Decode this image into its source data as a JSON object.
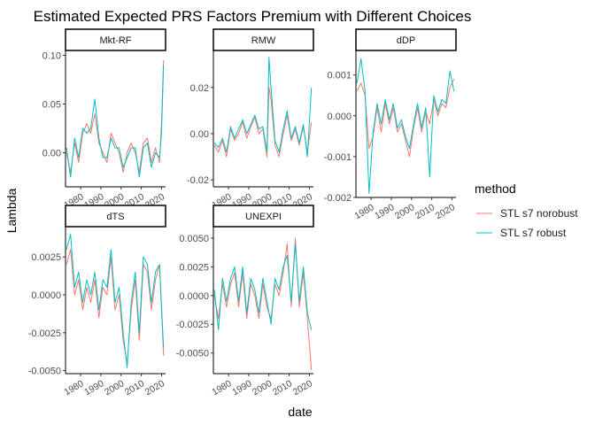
{
  "chart_data": {
    "type": "line",
    "title": "Estimated Expected PRS Factors Premium with Different Choices",
    "xlabel": "date",
    "ylabel": "Lambda",
    "grid": false,
    "legend": {
      "title": "method",
      "position": "right",
      "entries": [
        "STL s7 norobust",
        "STL s7 robust"
      ]
    },
    "series_colors": [
      "#F8766D",
      "#00BFC4"
    ],
    "x_ticks": [
      1980,
      1990,
      2000,
      2010,
      2020
    ],
    "x_tick_labels": [
      "1980",
      "1990",
      "2000",
      "2010",
      "2020"
    ],
    "xlim": [
      1972.5,
      2022
    ],
    "panels": [
      {
        "name": "Mkt-RF",
        "ylim": [
          -0.035,
          0.105
        ],
        "y_ticks": [
          0.0,
          0.05,
          0.1
        ],
        "y_tick_labels": [
          "0.00",
          "0.05",
          "0.10"
        ],
        "x": [
          1973,
          1975,
          1977,
          1979,
          1981,
          1983,
          1985,
          1987,
          1989,
          1991,
          1993,
          1995,
          1997,
          1999,
          2001,
          2003,
          2005,
          2007,
          2009,
          2011,
          2013,
          2015,
          2017,
          2019,
          2020,
          2021
        ],
        "series": [
          {
            "name": "STL s7 norobust",
            "values": [
              0.0,
              -0.02,
              0.01,
              -0.01,
              0.02,
              0.03,
              0.02,
              0.04,
              0.01,
              0.0,
              -0.01,
              0.02,
              0.01,
              0.0,
              -0.02,
              0.0,
              0.01,
              0.0,
              -0.02,
              0.01,
              0.015,
              -0.01,
              0.005,
              -0.01,
              0.03,
              0.095
            ]
          },
          {
            "name": "STL s7 robust",
            "values": [
              0.005,
              -0.025,
              0.015,
              -0.005,
              0.025,
              0.02,
              0.025,
              0.055,
              0.015,
              -0.005,
              -0.005,
              0.015,
              0.005,
              0.005,
              -0.015,
              -0.005,
              0.005,
              0.005,
              -0.025,
              0.005,
              0.01,
              -0.015,
              0.0,
              -0.005,
              0.02,
              0.09
            ]
          }
        ]
      },
      {
        "name": "RMW",
        "ylim": [
          -0.023,
          0.036
        ],
        "y_ticks": [
          -0.02,
          0.0,
          0.02
        ],
        "y_tick_labels": [
          "-0.02",
          "0.00",
          "0.02"
        ],
        "x": [
          1973,
          1975,
          1977,
          1979,
          1981,
          1983,
          1985,
          1987,
          1989,
          1991,
          1993,
          1995,
          1997,
          1999,
          2000,
          2001,
          2003,
          2005,
          2007,
          2009,
          2011,
          2013,
          2015,
          2017,
          2019,
          2021
        ],
        "series": [
          {
            "name": "STL s7 norobust",
            "values": [
              -0.005,
              -0.008,
              -0.003,
              -0.01,
              0.002,
              -0.003,
              0.0,
              0.005,
              -0.002,
              0.003,
              0.007,
              0.0,
              0.002,
              -0.01,
              0.02,
              0.015,
              -0.005,
              -0.01,
              0.0,
              0.008,
              -0.003,
              0.002,
              -0.005,
              0.003,
              -0.008,
              0.005
            ]
          },
          {
            "name": "STL s7 robust",
            "values": [
              -0.004,
              -0.006,
              -0.002,
              -0.008,
              0.003,
              -0.002,
              0.002,
              0.006,
              0.0,
              0.004,
              0.008,
              0.002,
              0.003,
              -0.008,
              0.033,
              0.02,
              -0.003,
              -0.008,
              0.002,
              0.01,
              -0.002,
              0.003,
              -0.004,
              0.004,
              -0.01,
              0.02
            ]
          }
        ]
      },
      {
        "name": "dDP",
        "ylim": [
          -0.002,
          0.0016
        ],
        "y_ticks": [
          -0.002,
          -0.001,
          0.0,
          0.001
        ],
        "y_tick_labels": [
          "-0.002",
          "-0.001",
          "0.000",
          "0.001"
        ],
        "x": [
          1973,
          1975,
          1977,
          1979,
          1981,
          1983,
          1985,
          1987,
          1989,
          1991,
          1993,
          1995,
          1997,
          1999,
          2001,
          2003,
          2005,
          2007,
          2009,
          2011,
          2013,
          2015,
          2017,
          2019,
          2021
        ],
        "series": [
          {
            "name": "STL s7 norobust",
            "values": [
              0.0006,
              0.0008,
              0.0005,
              -0.0008,
              -0.0005,
              0.0002,
              -0.0004,
              0.0003,
              -0.0002,
              0.0002,
              -0.0004,
              -0.0002,
              -0.0006,
              -0.001,
              -0.0003,
              0.0002,
              -0.0004,
              0.0001,
              -0.0002,
              0.0004,
              0.0,
              0.0003,
              0.0002,
              0.0007,
              0.0009
            ]
          },
          {
            "name": "STL s7 robust",
            "values": [
              0.0008,
              0.0014,
              0.0006,
              -0.0019,
              -0.0004,
              0.0003,
              -0.0002,
              0.0004,
              -0.0001,
              0.0003,
              -0.0003,
              -0.0001,
              -0.0005,
              -0.0008,
              -0.0002,
              0.0003,
              -0.0003,
              0.0002,
              -0.0015,
              0.0005,
              0.0001,
              0.0004,
              0.0003,
              0.0011,
              0.0006
            ]
          }
        ]
      },
      {
        "name": "dTS",
        "ylim": [
          -0.0052,
          0.0045
        ],
        "y_ticks": [
          -0.005,
          -0.0025,
          0.0,
          0.0025
        ],
        "y_tick_labels": [
          "-0.0050",
          "-0.0025",
          "0.0000",
          "0.0025"
        ],
        "x": [
          1973,
          1975,
          1977,
          1979,
          1981,
          1983,
          1985,
          1987,
          1989,
          1991,
          1993,
          1995,
          1997,
          1999,
          2001,
          2003,
          2005,
          2007,
          2009,
          2011,
          2013,
          2015,
          2017,
          2019,
          2021
        ],
        "series": [
          {
            "name": "STL s7 norobust",
            "values": [
              0.002,
              0.003,
              0.0,
              0.001,
              -0.001,
              0.0005,
              -0.0005,
              0.001,
              -0.0015,
              0.0005,
              0.0,
              0.0025,
              -0.001,
              0.0,
              -0.003,
              -0.0045,
              -0.001,
              0.001,
              -0.003,
              0.002,
              0.0015,
              -0.001,
              0.001,
              0.002,
              -0.004
            ]
          },
          {
            "name": "STL s7 robust",
            "values": [
              0.003,
              0.004,
              0.0005,
              0.0015,
              -0.0005,
              0.001,
              0.0,
              0.0015,
              -0.001,
              0.001,
              0.0005,
              0.003,
              -0.0005,
              0.0005,
              -0.0025,
              -0.0048,
              -0.0005,
              0.0015,
              -0.0025,
              0.0025,
              0.002,
              -0.0005,
              0.0015,
              0.002,
              -0.0035
            ]
          }
        ]
      },
      {
        "name": "UNEXPI",
        "ylim": [
          -0.0068,
          0.006
        ],
        "y_ticks": [
          -0.005,
          -0.0025,
          0.0,
          0.0025,
          0.005
        ],
        "y_tick_labels": [
          "-0.0050",
          "-0.0025",
          "0.0000",
          "0.0025",
          "0.0050"
        ],
        "x": [
          1973,
          1975,
          1977,
          1979,
          1981,
          1983,
          1985,
          1987,
          1989,
          1991,
          1993,
          1995,
          1997,
          1999,
          2001,
          2003,
          2005,
          2007,
          2009,
          2011,
          2013,
          2015,
          2017,
          2019,
          2021
        ],
        "series": [
          {
            "name": "STL s7 norobust",
            "values": [
              0.0,
              -0.002,
              0.001,
              -0.001,
              0.001,
              0.002,
              -0.001,
              0.002,
              -0.002,
              0.001,
              0.0,
              -0.002,
              0.001,
              -0.001,
              -0.002,
              0.001,
              0.0,
              0.002,
              0.0045,
              -0.001,
              0.005,
              -0.001,
              0.002,
              -0.002,
              -0.0065
            ]
          },
          {
            "name": "STL s7 robust",
            "values": [
              0.0005,
              -0.003,
              0.0015,
              -0.0005,
              0.0015,
              0.0025,
              -0.0005,
              0.0025,
              -0.0015,
              0.0015,
              0.0005,
              -0.0015,
              0.0015,
              -0.0005,
              -0.0025,
              0.0015,
              0.0005,
              0.0025,
              0.0035,
              -0.0005,
              0.0045,
              -0.0005,
              0.0025,
              -0.0015,
              -0.003
            ]
          }
        ]
      }
    ]
  }
}
